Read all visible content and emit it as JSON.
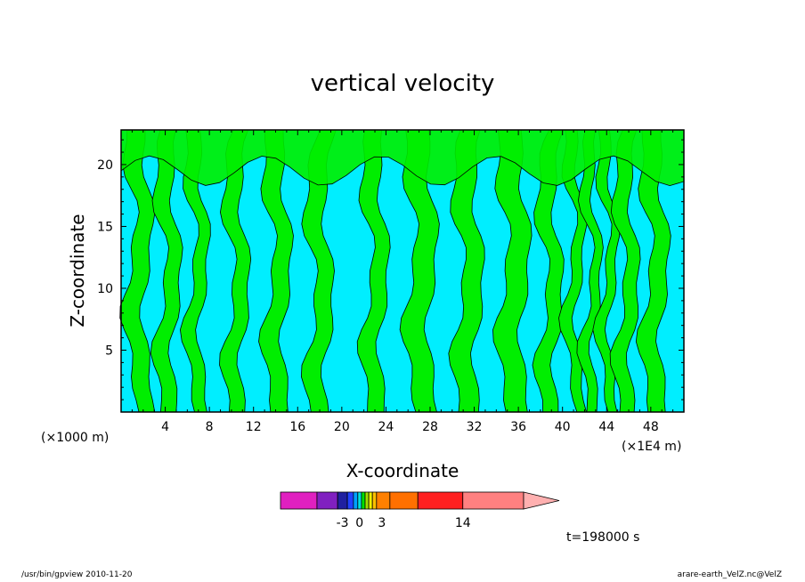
{
  "chart_data": {
    "type": "heatmap",
    "title": "vertical velocity",
    "xlabel": "X-coordinate",
    "ylabel": "Z-coordinate",
    "x_unit": "(×1E4 m)",
    "y_unit": "(×1000 m)",
    "xlim": [
      0,
      51
    ],
    "ylim": [
      0,
      22.8
    ],
    "x_ticks": [
      4,
      8,
      12,
      16,
      20,
      24,
      28,
      32,
      36,
      40,
      44,
      48
    ],
    "y_ticks": [
      5,
      10,
      15,
      20
    ],
    "x_tick_labels": [
      "4",
      "8",
      "12",
      "16",
      "20",
      "24",
      "28",
      "32",
      "36",
      "40",
      "44",
      "48"
    ],
    "y_tick_labels": [
      "5",
      "10",
      "15",
      "20"
    ],
    "fill_colors": {
      "positive": "#00ee00",
      "negative": "#00eeff",
      "contour": "#000000"
    },
    "colorbar": {
      "colors": [
        "#e020c0",
        "#8020c0",
        "#2020a0",
        "#2040ff",
        "#00a0ff",
        "#00e0e0",
        "#00e000",
        "#a0e000",
        "#f0f000",
        "#ffc000",
        "#ff8000",
        "#ff7000",
        "#ff2020",
        "#ff8080",
        "#ffb0b0"
      ],
      "tick_labels": [
        "-3",
        "0",
        "3",
        "14"
      ],
      "tick_values": [
        -3,
        0,
        3,
        14
      ]
    },
    "time_label": "t=198000 s"
  },
  "footer": {
    "left": "/usr/bin/gpview   2010-11-20",
    "right": "arare-earth_VelZ.nc@VelZ"
  }
}
